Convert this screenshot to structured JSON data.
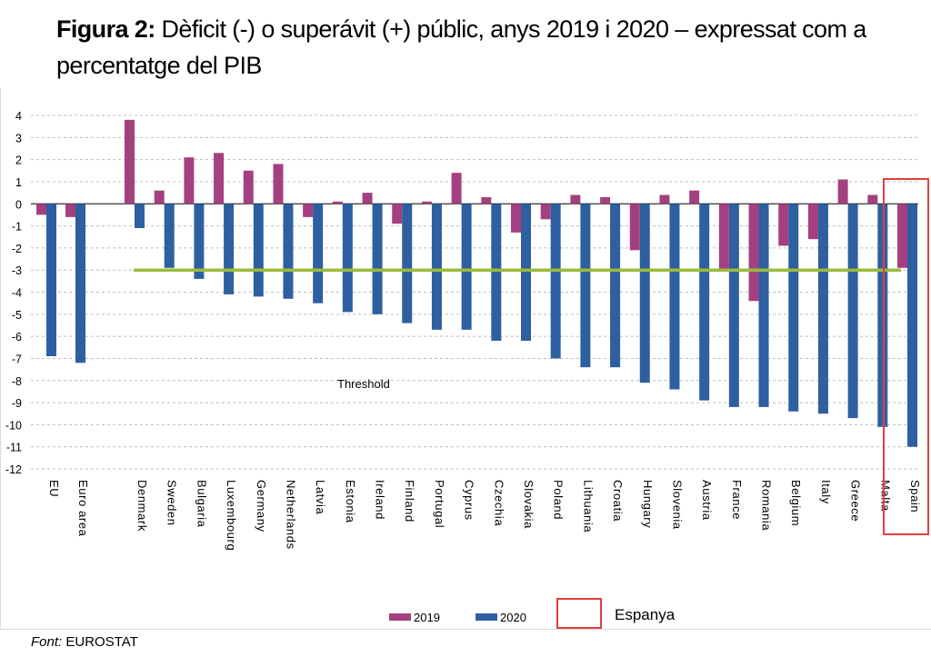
{
  "title": {
    "prefix": "Figura 2:",
    "text": "Dèficit (-) o superávit (+) públic, anys 2019 i 2020 – expressat com a percentatge del PIB"
  },
  "source": {
    "label": "Font:",
    "value": "EUROSTAT"
  },
  "chart_data": {
    "type": "bar",
    "categories": [
      "EU",
      "Euro area",
      "Denmark",
      "Sweden",
      "Bulgaria",
      "Luxembourg",
      "Germany",
      "Netherlands",
      "Latvia",
      "Estonia",
      "Ireland",
      "Finland",
      "Portugal",
      "Cyprus",
      "Czechia",
      "Slovakia",
      "Poland",
      "Lithuania",
      "Croatia",
      "Hungary",
      "Slovenia",
      "Austria",
      "France",
      "Romania",
      "Belgium",
      "Italy",
      "Greece",
      "Malta",
      "Spain"
    ],
    "series": [
      {
        "name": "2019",
        "color": "#a4407f",
        "values": [
          -0.5,
          -0.6,
          3.8,
          0.6,
          2.1,
          2.3,
          1.5,
          1.8,
          -0.6,
          0.1,
          0.5,
          -0.9,
          0.1,
          1.4,
          0.3,
          -1.3,
          -0.7,
          0.4,
          0.3,
          -2.1,
          0.4,
          0.6,
          -3.0,
          -4.4,
          -1.9,
          -1.6,
          1.1,
          0.4,
          -2.9
        ]
      },
      {
        "name": "2020",
        "color": "#2e5fa0",
        "values": [
          -6.9,
          -7.2,
          -1.1,
          -2.9,
          -3.4,
          -4.1,
          -4.2,
          -4.3,
          -4.5,
          -4.9,
          -5.0,
          -5.4,
          -5.7,
          -5.7,
          -6.2,
          -6.2,
          -7.0,
          -7.4,
          -7.4,
          -8.1,
          -8.4,
          -8.9,
          -9.2,
          -9.2,
          -9.4,
          -9.5,
          -9.7,
          -10.1,
          -11.0
        ]
      }
    ],
    "ylim": [
      -12,
      4
    ],
    "yticks": [
      "4",
      "3",
      "2",
      "1",
      "0",
      "-1",
      "-2",
      "-3",
      "-4",
      "-5",
      "-6",
      "-7",
      "-8",
      "-9",
      "-10",
      "-11",
      "-12"
    ],
    "threshold": {
      "value": -3,
      "label": "Threshold",
      "color": "#9bbb3b"
    },
    "highlight": {
      "category": "Spain",
      "label": "Espanya",
      "color": "#e0413a"
    },
    "grid": true,
    "legend": "bottom"
  }
}
